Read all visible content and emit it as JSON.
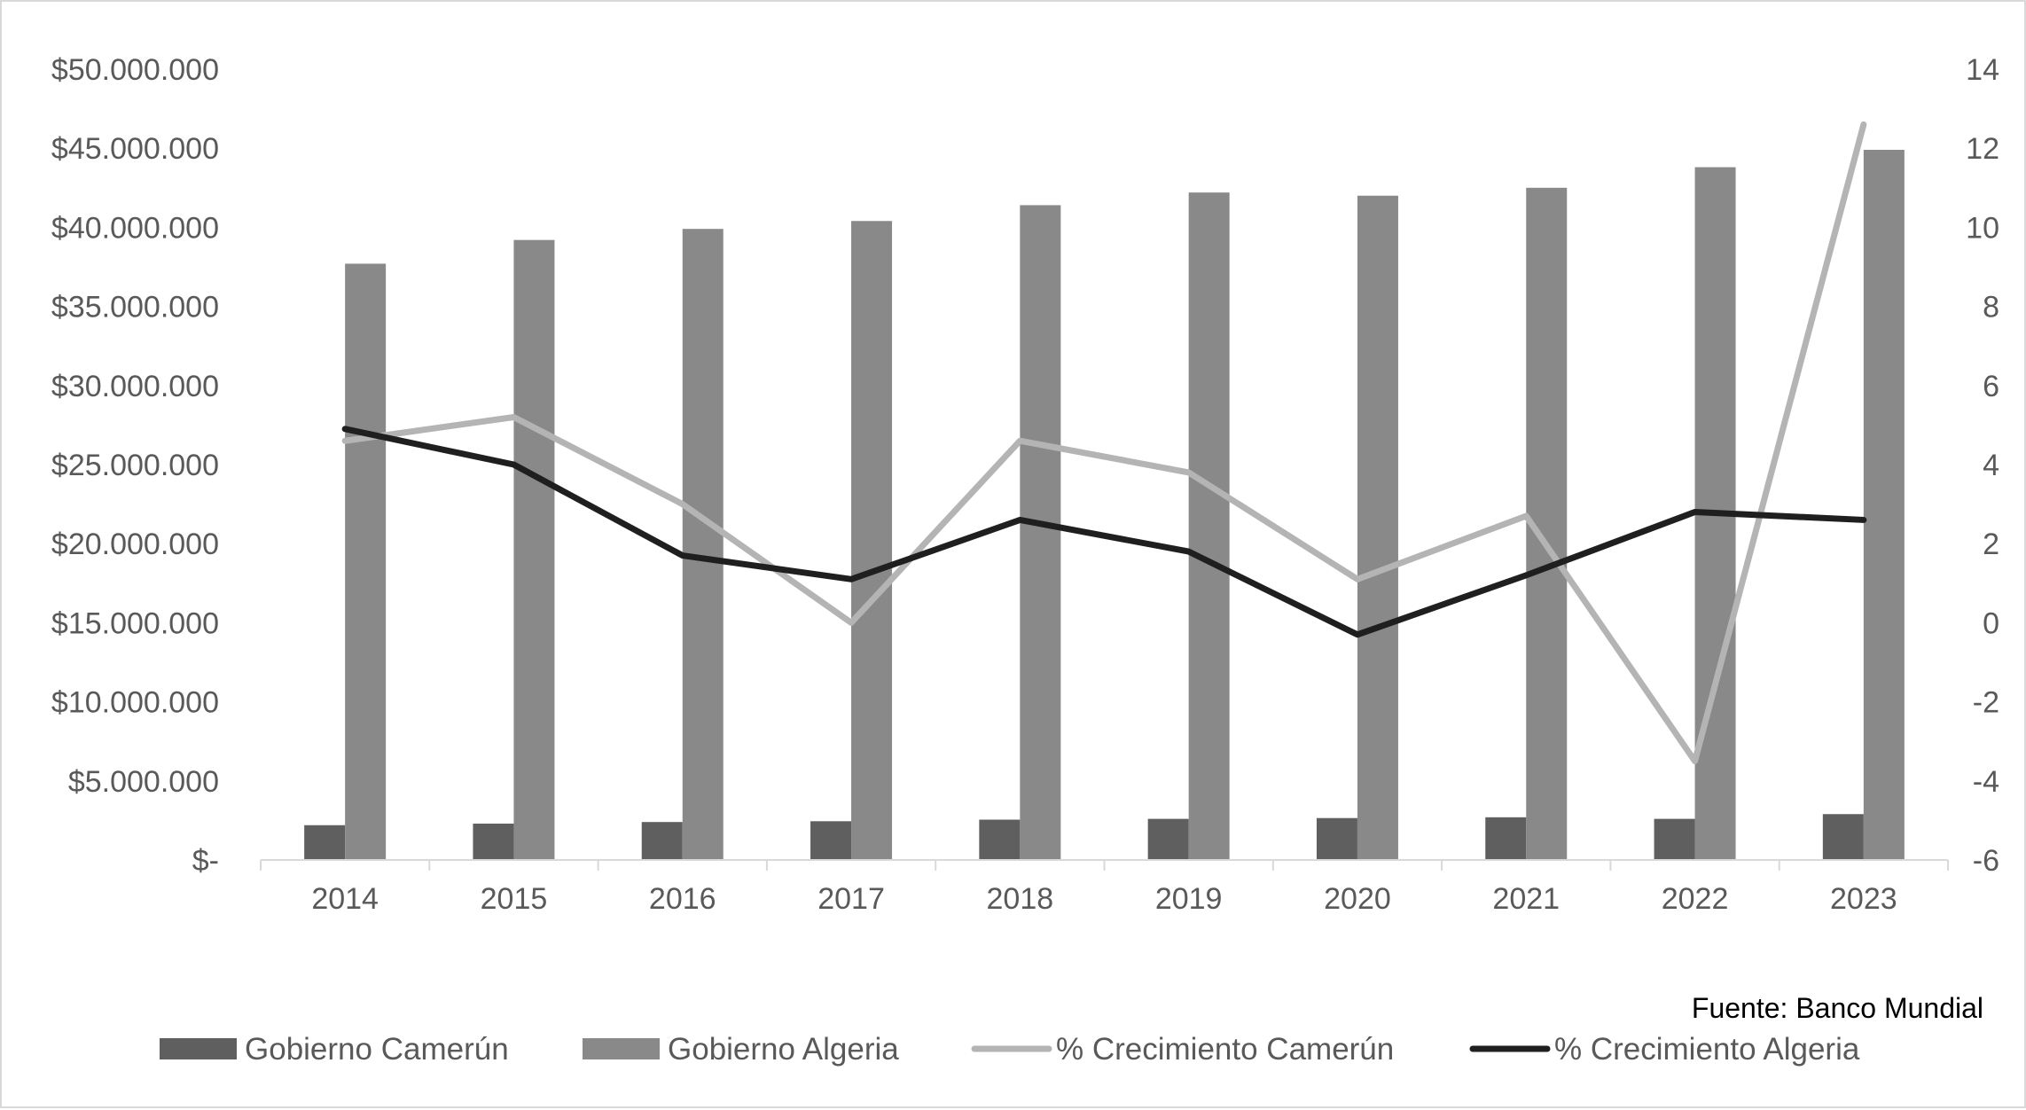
{
  "chart_data": {
    "type": "bar",
    "categories": [
      "2014",
      "2015",
      "2016",
      "2017",
      "2018",
      "2019",
      "2020",
      "2021",
      "2022",
      "2023"
    ],
    "series": [
      {
        "name": "Gobierno Camerún",
        "type": "bar",
        "axis": "left",
        "color": "#5f5f5f",
        "values": [
          2200000,
          2300000,
          2400000,
          2450000,
          2550000,
          2600000,
          2650000,
          2700000,
          2600000,
          2900000
        ]
      },
      {
        "name": "Gobierno Algeria",
        "type": "bar",
        "axis": "left",
        "color": "#898989",
        "values": [
          37700000,
          39200000,
          39900000,
          40400000,
          41400000,
          42200000,
          42000000,
          42500000,
          43800000,
          44900000
        ]
      },
      {
        "name": "% Crecimiento Camerún",
        "type": "line",
        "axis": "right",
        "color": "#b4b4b4",
        "values": [
          4.6,
          5.2,
          3.0,
          0.0,
          4.6,
          3.8,
          1.1,
          2.7,
          -3.5,
          12.6
        ]
      },
      {
        "name": "% Crecimiento Algeria",
        "type": "line",
        "axis": "right",
        "color": "#1f1f1f",
        "values": [
          4.9,
          4.0,
          1.7,
          1.1,
          2.6,
          1.8,
          -0.3,
          1.2,
          2.8,
          2.6
        ]
      }
    ],
    "left_axis": {
      "ylim": [
        0,
        50000000
      ],
      "ticks": [
        0,
        5000000,
        10000000,
        15000000,
        20000000,
        25000000,
        30000000,
        35000000,
        40000000,
        45000000,
        50000000
      ],
      "tick_labels": [
        "$-",
        "$5.000.000",
        "$10.000.000",
        "$15.000.000",
        "$20.000.000",
        "$25.000.000",
        "$30.000.000",
        "$35.000.000",
        "$40.000.000",
        "$45.000.000",
        "$50.000.000"
      ]
    },
    "right_axis": {
      "ylim": [
        -6,
        14
      ],
      "ticks": [
        -6,
        -4,
        -2,
        0,
        2,
        4,
        6,
        8,
        10,
        12,
        14
      ],
      "tick_labels": [
        "-6",
        "-4",
        "-2",
        "0",
        "2",
        "4",
        "6",
        "8",
        "10",
        "12",
        "14"
      ]
    },
    "grid": false,
    "legend_position": "bottom",
    "source": "Fuente: Banco Mundial"
  }
}
